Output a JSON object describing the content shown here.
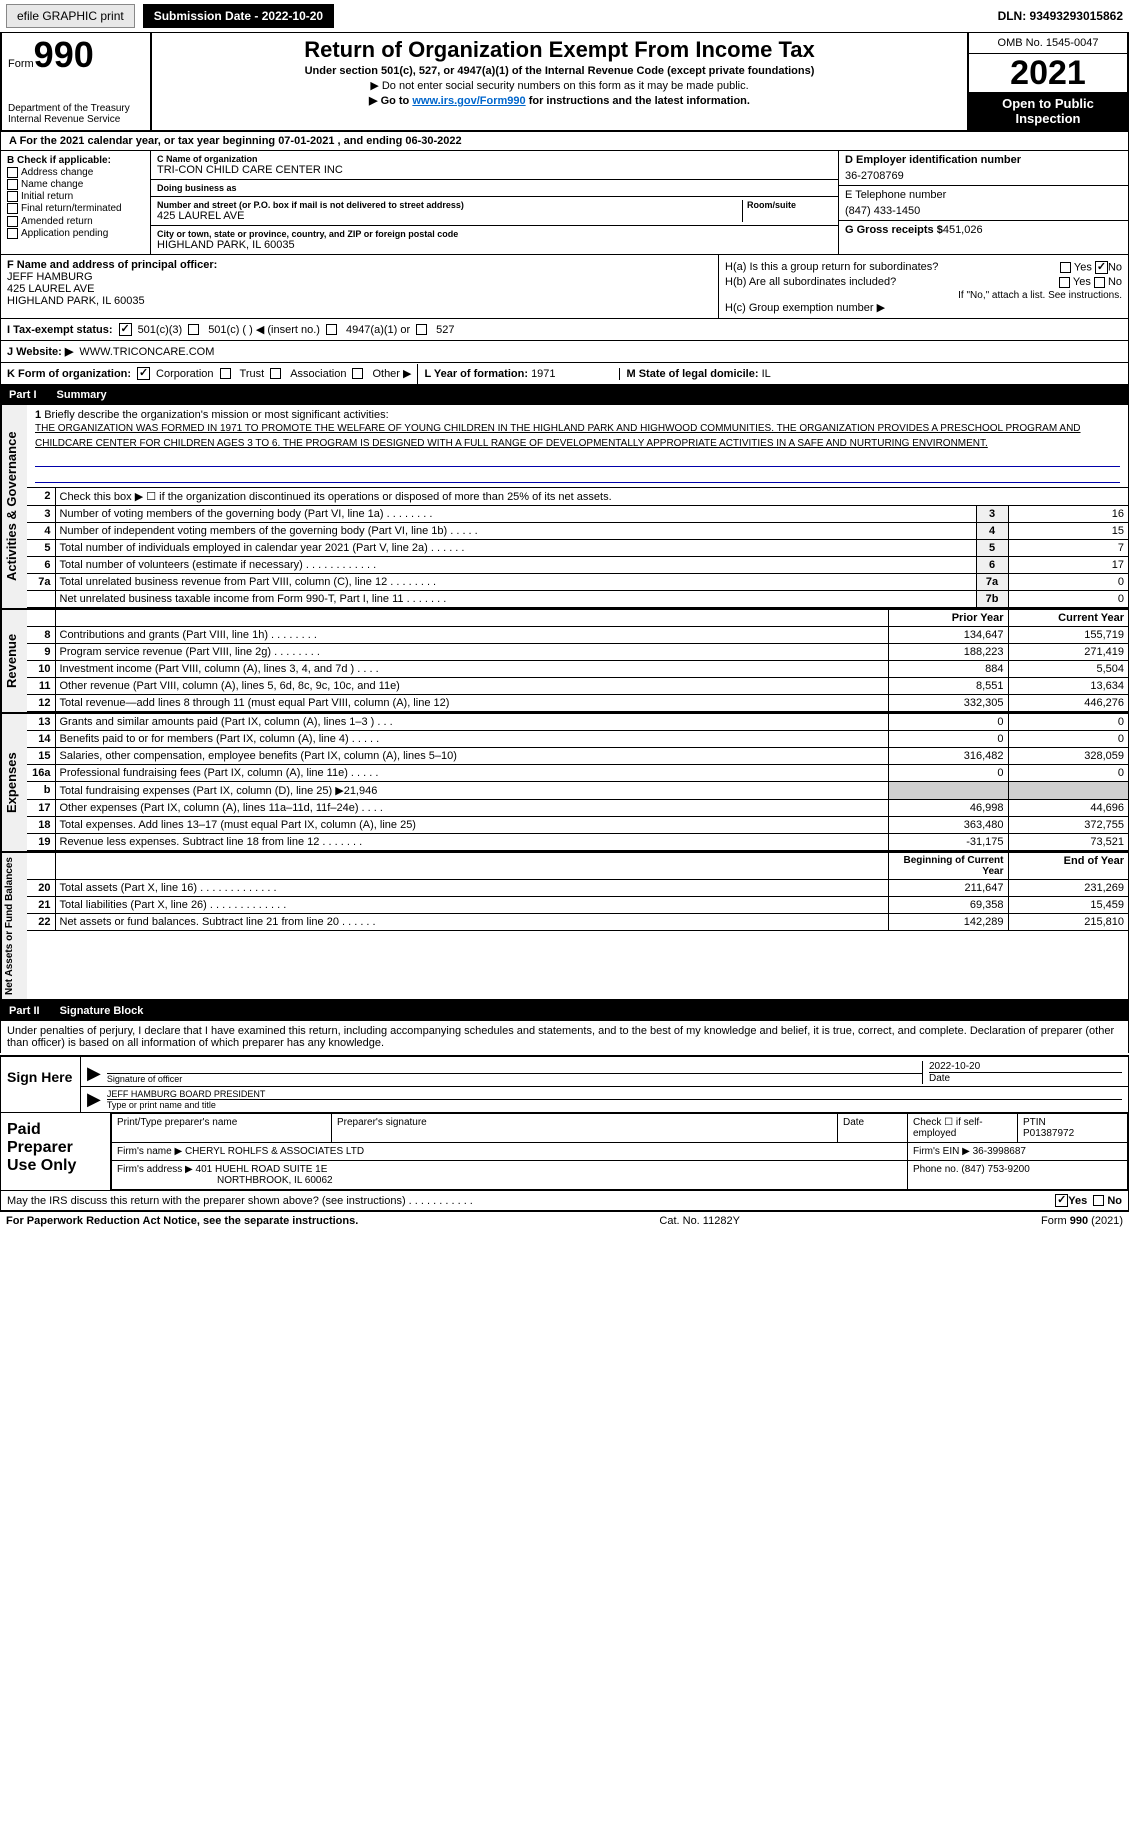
{
  "topbar": {
    "efile": "efile GRAPHIC print",
    "submission": "Submission Date - 2022-10-20",
    "dln": "DLN: 93493293015862"
  },
  "header": {
    "form_label": "Form",
    "form_num": "990",
    "dept": "Department of the Treasury",
    "irs": "Internal Revenue Service",
    "title": "Return of Organization Exempt From Income Tax",
    "sub": "Under section 501(c), 527, or 4947(a)(1) of the Internal Revenue Code (except private foundations)",
    "note1": "▶ Do not enter social security numbers on this form as it may be made public.",
    "note2_pre": "▶ Go to ",
    "note2_link": "www.irs.gov/Form990",
    "note2_post": " for instructions and the latest information.",
    "omb": "OMB No. 1545-0047",
    "year": "2021",
    "open": "Open to Public Inspection"
  },
  "a_line": "A For the 2021 calendar year, or tax year beginning 07-01-2021    , and ending 06-30-2022",
  "b": {
    "label": "B Check if applicable:",
    "opts": [
      "Address change",
      "Name change",
      "Initial return",
      "Final return/terminated",
      "Amended return",
      "Application pending"
    ]
  },
  "c": {
    "name_label": "C Name of organization",
    "name": "TRI-CON CHILD CARE CENTER INC",
    "dba_label": "Doing business as",
    "dba": "",
    "addr_label": "Number and street (or P.O. box if mail is not delivered to street address)",
    "room_label": "Room/suite",
    "addr": "425 LAUREL AVE",
    "city_label": "City or town, state or province, country, and ZIP or foreign postal code",
    "city": "HIGHLAND PARK, IL  60035"
  },
  "d": {
    "label": "D Employer identification number",
    "val": "36-2708769"
  },
  "e": {
    "label": "E Telephone number",
    "val": "(847) 433-1450"
  },
  "g": {
    "label": "G Gross receipts $",
    "val": "451,026"
  },
  "f": {
    "label": "F  Name and address of principal officer:",
    "name": "JEFF HAMBURG",
    "addr1": "425 LAUREL AVE",
    "addr2": "HIGHLAND PARK, IL  60035"
  },
  "h": {
    "a": "H(a)  Is this a group return for subordinates?",
    "b": "H(b)  Are all subordinates included?",
    "b_note": "If \"No,\" attach a list. See instructions.",
    "c": "H(c)  Group exemption number ▶",
    "yes": "Yes",
    "no": "No"
  },
  "i": {
    "label": "I   Tax-exempt status:",
    "o1": "501(c)(3)",
    "o2": "501(c) (   ) ◀ (insert no.)",
    "o3": "4947(a)(1) or",
    "o4": "527"
  },
  "j": {
    "label": "J   Website: ▶",
    "val": "WWW.TRICONCARE.COM"
  },
  "k": {
    "label": "K Form of organization:",
    "o1": "Corporation",
    "o2": "Trust",
    "o3": "Association",
    "o4": "Other ▶"
  },
  "l": {
    "label": "L Year of formation:",
    "val": "1971"
  },
  "m": {
    "label": "M State of legal domicile:",
    "val": "IL"
  },
  "part1": {
    "num": "Part I",
    "title": "Summary"
  },
  "mission": {
    "num": "1",
    "label": "Briefly describe the organization's mission or most significant activities:",
    "text": "THE ORGANIZATION WAS FORMED IN 1971 TO PROMOTE THE WELFARE OF YOUNG CHILDREN IN THE HIGHLAND PARK AND HIGHWOOD COMMUNITIES. THE ORGANIZATION PROVIDES A PRESCHOOL PROGRAM AND CHILDCARE CENTER FOR CHILDREN AGES 3 TO 6. THE PROGRAM IS DESIGNED WITH A FULL RANGE OF DEVELOPMENTALLY APPROPRIATE ACTIVITIES IN A SAFE AND NURTURING ENVIRONMENT."
  },
  "side": {
    "gov": "Activities & Governance",
    "rev": "Revenue",
    "exp": "Expenses",
    "net": "Net Assets or Fund Balances"
  },
  "gov_rows": [
    {
      "n": "2",
      "t": "Check this box ▶ ☐ if the organization discontinued its operations or disposed of more than 25% of its net assets."
    },
    {
      "n": "3",
      "t": "Number of voting members of the governing body (Part VI, line 1a)   .    .    .    .    .    .    .    .",
      "b": "3",
      "v": "16"
    },
    {
      "n": "4",
      "t": "Number of independent voting members of the governing body (Part VI, line 1b)   .    .    .    .    .",
      "b": "4",
      "v": "15"
    },
    {
      "n": "5",
      "t": "Total number of individuals employed in calendar year 2021 (Part V, line 2a)   .    .    .    .    .    .",
      "b": "5",
      "v": "7"
    },
    {
      "n": "6",
      "t": "Total number of volunteers (estimate if necessary)    .    .    .    .    .    .    .    .    .    .    .    .",
      "b": "6",
      "v": "17"
    },
    {
      "n": "7a",
      "t": "Total unrelated business revenue from Part VIII, column (C), line 12   .    .    .    .    .    .    .    .",
      "b": "7a",
      "v": "0"
    },
    {
      "n": "",
      "t": "Net unrelated business taxable income from Form 990-T, Part I, line 11   .    .    .    .    .    .    .",
      "b": "7b",
      "v": "0"
    }
  ],
  "col_hdr": {
    "prior": "Prior Year",
    "curr": "Current Year"
  },
  "rev_rows": [
    {
      "n": "8",
      "t": "Contributions and grants (Part VIII, line 1h)   .    .    .    .    .    .    .    .",
      "p": "134,647",
      "c": "155,719"
    },
    {
      "n": "9",
      "t": "Program service revenue (Part VIII, line 2g)   .    .    .    .    .    .    .    .",
      "p": "188,223",
      "c": "271,419"
    },
    {
      "n": "10",
      "t": "Investment income (Part VIII, column (A), lines 3, 4, and 7d )   .    .    .    .",
      "p": "884",
      "c": "5,504"
    },
    {
      "n": "11",
      "t": "Other revenue (Part VIII, column (A), lines 5, 6d, 8c, 9c, 10c, and 11e)",
      "p": "8,551",
      "c": "13,634"
    },
    {
      "n": "12",
      "t": "Total revenue—add lines 8 through 11 (must equal Part VIII, column (A), line 12)",
      "p": "332,305",
      "c": "446,276"
    }
  ],
  "exp_rows": [
    {
      "n": "13",
      "t": "Grants and similar amounts paid (Part IX, column (A), lines 1–3 )   .    .    .",
      "p": "0",
      "c": "0"
    },
    {
      "n": "14",
      "t": "Benefits paid to or for members (Part IX, column (A), line 4)   .    .    .    .    .",
      "p": "0",
      "c": "0"
    },
    {
      "n": "15",
      "t": "Salaries, other compensation, employee benefits (Part IX, column (A), lines 5–10)",
      "p": "316,482",
      "c": "328,059"
    },
    {
      "n": "16a",
      "t": "Professional fundraising fees (Part IX, column (A), line 11e)   .    .    .    .    .",
      "p": "0",
      "c": "0"
    },
    {
      "n": "b",
      "t": "Total fundraising expenses (Part IX, column (D), line 25) ▶21,946",
      "p": "",
      "c": "",
      "shade": true
    },
    {
      "n": "17",
      "t": "Other expenses (Part IX, column (A), lines 11a–11d, 11f–24e)   .    .    .    .",
      "p": "46,998",
      "c": "44,696"
    },
    {
      "n": "18",
      "t": "Total expenses. Add lines 13–17 (must equal Part IX, column (A), line 25)",
      "p": "363,480",
      "c": "372,755"
    },
    {
      "n": "19",
      "t": "Revenue less expenses. Subtract line 18 from line 12   .    .    .    .    .    .    .",
      "p": "-31,175",
      "c": "73,521"
    }
  ],
  "net_hdr": {
    "begin": "Beginning of Current Year",
    "end": "End of Year"
  },
  "net_rows": [
    {
      "n": "20",
      "t": "Total assets (Part X, line 16)   .    .    .    .    .    .    .    .    .    .    .    .    .",
      "p": "211,647",
      "c": "231,269"
    },
    {
      "n": "21",
      "t": "Total liabilities (Part X, line 26)   .    .    .    .    .    .    .    .    .    .    .    .    .",
      "p": "69,358",
      "c": "15,459"
    },
    {
      "n": "22",
      "t": "Net assets or fund balances. Subtract line 21 from line 20   .    .    .    .    .    .",
      "p": "142,289",
      "c": "215,810"
    }
  ],
  "part2": {
    "num": "Part II",
    "title": "Signature Block"
  },
  "declaration": "Under penalties of perjury, I declare that I have examined this return, including accompanying schedules and statements, and to the best of my knowledge and belief, it is true, correct, and complete. Declaration of preparer (other than officer) is based on all information of which preparer has any knowledge.",
  "sign": {
    "here": "Sign Here",
    "sig_label": "Signature of officer",
    "date_label": "Date",
    "date": "2022-10-20",
    "name": "JEFF HAMBURG  BOARD PRESIDENT",
    "name_label": "Type or print name and title"
  },
  "paid": {
    "label": "Paid Preparer Use Only",
    "h1": "Print/Type preparer's name",
    "h2": "Preparer's signature",
    "h3": "Date",
    "h4": "Check ☐ if self-employed",
    "h5_label": "PTIN",
    "h5": "P01387972",
    "firm_label": "Firm's name    ▶",
    "firm": "CHERYL ROHLFS & ASSOCIATES LTD",
    "ein_label": "Firm's EIN ▶",
    "ein": "36-3998687",
    "addr_label": "Firm's address ▶",
    "addr1": "401 HUEHL ROAD SUITE 1E",
    "addr2": "NORTHBROOK, IL  60062",
    "phone_label": "Phone no.",
    "phone": "(847) 753-9200"
  },
  "discuss": {
    "q": "May the IRS discuss this return with the preparer shown above? (see instructions)    .    .    .    .    .    .    .    .    .    .    .",
    "yes": "Yes",
    "no": "No"
  },
  "footer": {
    "left": "For Paperwork Reduction Act Notice, see the separate instructions.",
    "mid": "Cat. No. 11282Y",
    "right": "Form 990 (2021)"
  }
}
